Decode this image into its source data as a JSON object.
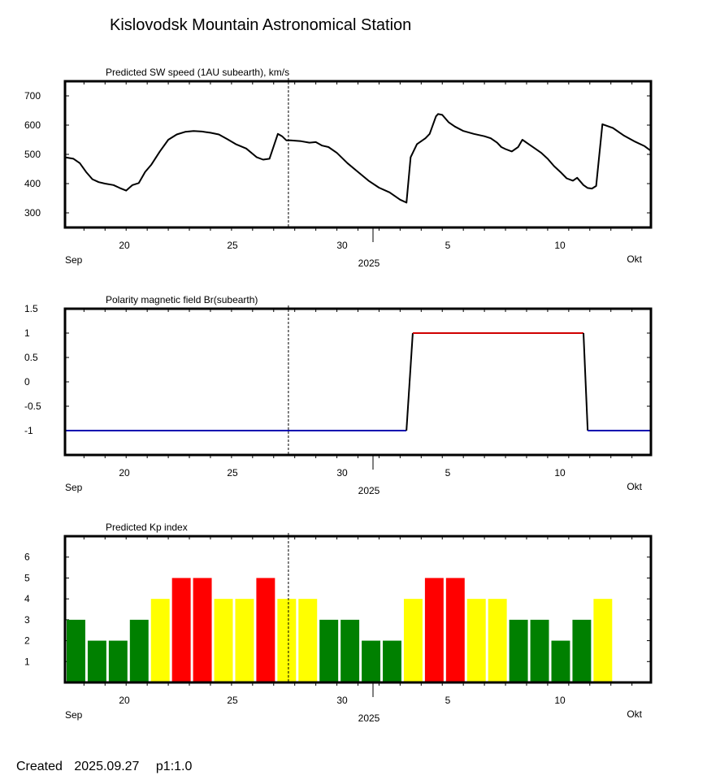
{
  "title": "Kislovodsk Mountain Astronomical Station",
  "footer": {
    "created_label": "Created",
    "created_date": "2025.09.27",
    "page": "p1:1.0"
  },
  "x_axis": {
    "day_ticks": [
      "20",
      "25",
      "30",
      "5",
      "10"
    ],
    "left_month": "Sep",
    "right_month": "Okt",
    "year": "2025"
  },
  "chart_data": [
    {
      "type": "line",
      "title": "Predicted SW speed (1AU subearth), km/s",
      "xlabel": "",
      "ylabel": "",
      "ylim": [
        250,
        750
      ],
      "yticks": [
        700,
        600,
        500,
        400,
        300
      ],
      "xlim_days": [
        17.1,
        44.9
      ],
      "current_time_marker_day": 27.7,
      "x_days": [
        17.1,
        17.5,
        17.8,
        18.1,
        18.4,
        18.7,
        19.0,
        19.4,
        19.7,
        20.0,
        20.3,
        20.6,
        20.9,
        21.2,
        21.6,
        22.0,
        22.4,
        22.8,
        23.2,
        23.6,
        24.0,
        24.4,
        24.8,
        25.2,
        25.7,
        26.2,
        26.5,
        26.8,
        27.2,
        27.4,
        27.6,
        27.8,
        28.3,
        28.7,
        29.0,
        29.3,
        29.6,
        30.0,
        30.5,
        31.0,
        31.5,
        32.0,
        32.5,
        33.0,
        33.3,
        33.5,
        33.8,
        34.2,
        34.4,
        34.7,
        34.8,
        35.0,
        35.3,
        35.6,
        36.0,
        36.5,
        37.0,
        37.3,
        37.6,
        37.8,
        38.0,
        38.3,
        38.6,
        38.8,
        39.1,
        39.4,
        39.7,
        40.0,
        40.3,
        40.6,
        40.9,
        41.2,
        41.4,
        41.7,
        41.9,
        42.1,
        42.3,
        42.6,
        43.1,
        43.6,
        44.1,
        44.6,
        44.9
      ],
      "values": [
        490,
        485,
        470,
        440,
        415,
        405,
        400,
        395,
        385,
        376,
        395,
        402,
        440,
        465,
        510,
        550,
        568,
        577,
        580,
        578,
        574,
        568,
        552,
        535,
        520,
        490,
        482,
        485,
        570,
        562,
        548,
        548,
        545,
        540,
        542,
        530,
        525,
        505,
        470,
        440,
        410,
        386,
        370,
        345,
        335,
        490,
        535,
        555,
        570,
        630,
        638,
        635,
        610,
        595,
        580,
        570,
        562,
        555,
        540,
        525,
        518,
        510,
        525,
        550,
        535,
        520,
        505,
        485,
        460,
        440,
        418,
        410,
        420,
        395,
        385,
        383,
        392,
        603,
        590,
        565,
        545,
        528,
        512
      ]
    },
    {
      "type": "line",
      "title": "Polarity magnetic field  Br(subearth)",
      "xlabel": "",
      "ylabel": "",
      "ylim": [
        -1.5,
        1.5
      ],
      "yticks": [
        "1.5",
        "1",
        "0.5",
        "0",
        "-0.5",
        "-1"
      ],
      "xlim_days": [
        17.1,
        44.9
      ],
      "current_time_marker_day": 27.7,
      "x_days": [
        17.1,
        33.3,
        33.6,
        41.7,
        41.9,
        44.9
      ],
      "values": [
        -1,
        -1,
        1,
        1,
        -1,
        -1
      ],
      "colors": {
        "negative": "#0000b0",
        "positive": "#d00000",
        "transition": "#000000"
      }
    },
    {
      "type": "bar",
      "title": "Predicted Kp index",
      "xlabel": "",
      "ylabel": "",
      "ylim": [
        0,
        7
      ],
      "yticks": [
        6,
        5,
        4,
        3,
        2,
        1
      ],
      "xlim_days": [
        17.1,
        44.9
      ],
      "current_time_marker_day": 27.7,
      "bar_start_day": 17.1,
      "bar_width_days": 1,
      "values": [
        3,
        2,
        2,
        3,
        4,
        5,
        5,
        4,
        4,
        5,
        4,
        4,
        3,
        3,
        2,
        2,
        4,
        5,
        5,
        4,
        4,
        3,
        3,
        2,
        3,
        4
      ],
      "color_scale": {
        "low": "#008000",
        "mid": "#ffff00",
        "high": "#ff0000"
      }
    }
  ]
}
